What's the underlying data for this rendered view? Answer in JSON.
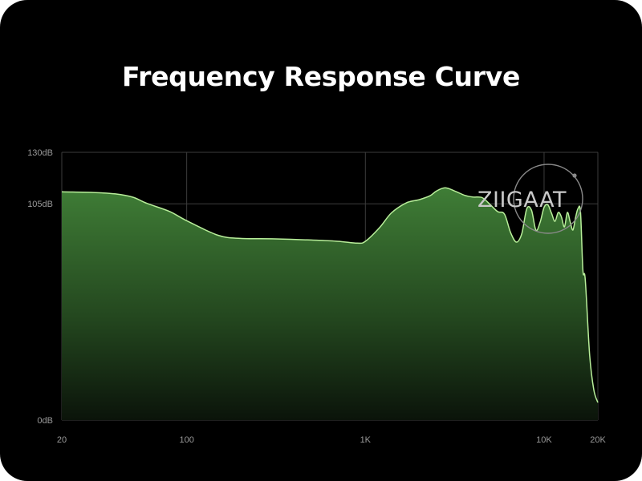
{
  "title": "Frequency Response Curve",
  "logo": {
    "text": "ZIIGAAT"
  },
  "colors": {
    "background": "#000000",
    "grid": "#3d3d3d",
    "line": "#b8ee9a",
    "fill_top": "#3f7d36",
    "fill_bottom": "#0b140a"
  },
  "chart_data": {
    "type": "area",
    "title": "Frequency Response Curve",
    "xlabel": "",
    "ylabel": "",
    "x_scale": "log",
    "xlim": [
      20,
      20000
    ],
    "ylim": [
      0,
      130
    ],
    "grid": true,
    "x_ticks": [
      {
        "value": 20,
        "label": "20"
      },
      {
        "value": 100,
        "label": "100"
      },
      {
        "value": 1000,
        "label": "1K"
      },
      {
        "value": 10000,
        "label": "10K"
      },
      {
        "value": 20000,
        "label": "20K"
      }
    ],
    "y_ticks": [
      {
        "value": 0,
        "label": "0dB"
      },
      {
        "value": 105,
        "label": "105dB"
      },
      {
        "value": 130,
        "label": "130dB"
      }
    ],
    "series": [
      {
        "x": [
          20,
          30,
          40,
          50,
          60,
          80,
          100,
          150,
          200,
          300,
          500,
          700,
          900,
          1000,
          1200,
          1400,
          1700,
          2000,
          2300,
          2500,
          2800,
          3200,
          3600,
          4000,
          4500,
          5000,
          5500,
          6000,
          6500,
          7000,
          7500,
          8000,
          8500,
          9000,
          9500,
          10000,
          10500,
          11000,
          11500,
          12000,
          12500,
          13000,
          13500,
          14000,
          14500,
          15000,
          15500,
          16000,
          16500,
          17000,
          18000,
          19000,
          20000
        ],
        "y": [
          110.8,
          110.5,
          109.8,
          108.2,
          105.2,
          101.3,
          96.8,
          89.7,
          88.2,
          88.0,
          87.4,
          86.8,
          85.9,
          86.8,
          93.4,
          100.6,
          105.5,
          107.0,
          108.9,
          111.2,
          112.8,
          111.0,
          109.1,
          108.3,
          108.0,
          104.6,
          101.2,
          100.0,
          91.0,
          86.4,
          90.5,
          102.6,
          101.9,
          92.2,
          96.0,
          103.3,
          104.5,
          100.5,
          96.5,
          100.8,
          98.7,
          93.8,
          100.8,
          96.2,
          92.3,
          98.3,
          102.8,
          100.8,
          72.5,
          68.2,
          31.4,
          14.6,
          8.5
        ]
      }
    ]
  }
}
